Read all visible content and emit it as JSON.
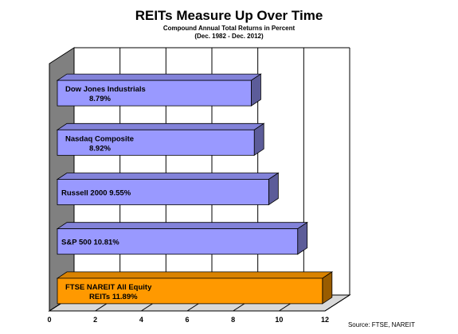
{
  "chart_data": {
    "type": "bar",
    "orientation": "horizontal",
    "title": "REITs Measure Up Over Time",
    "subtitle": "Compound  Annual  Total Returns in Percent",
    "period": "(Dec. 1982 - Dec. 2012)",
    "xlim": [
      0,
      12
    ],
    "x_ticks": [
      "0",
      "2",
      "4",
      "6",
      "8",
      "10",
      "12"
    ],
    "grid": true,
    "bars": [
      {
        "label": "Dow Jones Industrials",
        "value_label": "8.79%",
        "value": 8.79,
        "color": "#9999ff",
        "lines": 2
      },
      {
        "label": "Nasdaq Composite",
        "value_label": "8.92%",
        "value": 8.92,
        "color": "#9999ff",
        "lines": 2
      },
      {
        "label": "Russell 2000",
        "value_label": "9.55%",
        "value": 9.55,
        "color": "#9999ff",
        "lines": 1
      },
      {
        "label": "S&P 500",
        "value_label": "10.81%",
        "value": 10.81,
        "color": "#9999ff",
        "lines": 1
      },
      {
        "label": "FTSE NAREIT All  Equity",
        "label_line2": "REITs",
        "value_label": "11.89%",
        "value": 11.89,
        "color": "#ff9900",
        "lines": 2
      }
    ],
    "source": "Source: FTSE, NAREIT"
  }
}
